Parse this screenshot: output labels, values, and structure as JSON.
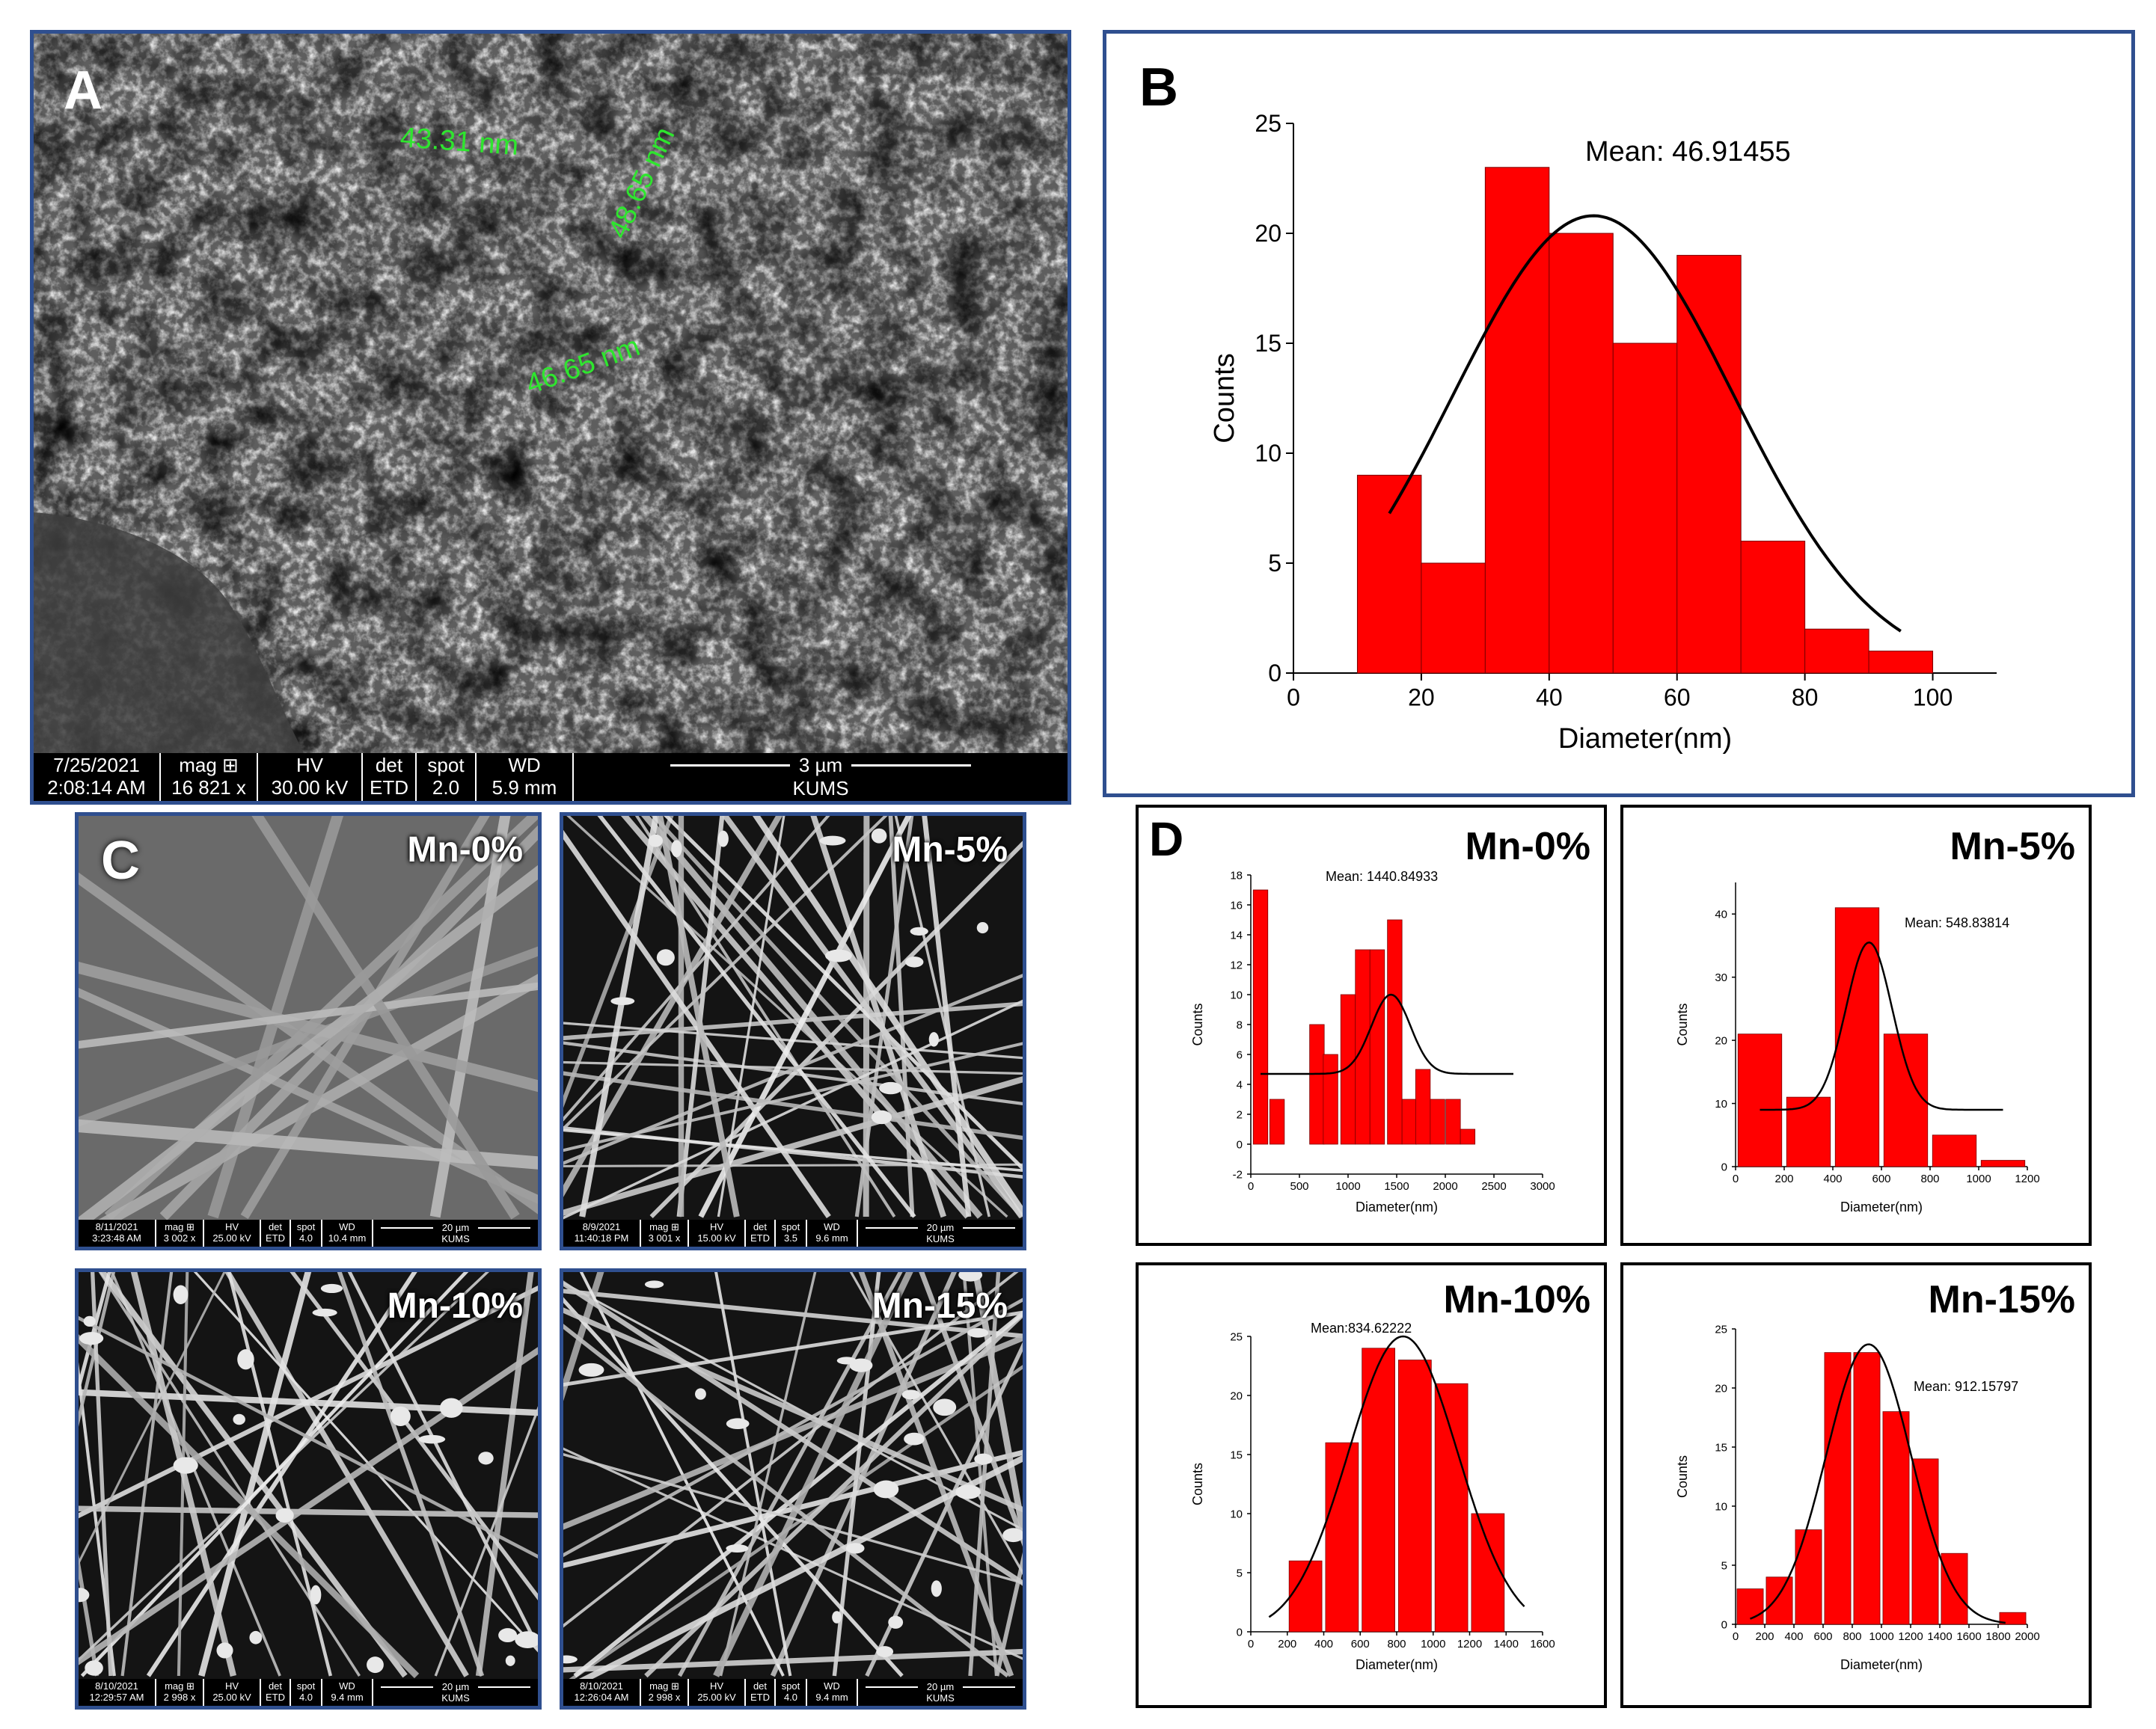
{
  "panel_a": {
    "letter": "A",
    "measurements": [
      "43.31 nm",
      "48.65 nm",
      "46.65 nm"
    ],
    "databar": {
      "date": "7/25/2021",
      "time": "2:08:14 AM",
      "mag_label": "mag ⊞",
      "mag_value": "16 821 x",
      "hv_label": "HV",
      "hv_value": "30.00 kV",
      "det_label": "det",
      "det_value": "ETD",
      "spot_label": "spot",
      "spot_value": "2.0",
      "wd_label": "WD",
      "wd_value": "5.9 mm",
      "scale": "3 µm",
      "org": "KUMS"
    }
  },
  "panel_c": {
    "letter": "C",
    "images": [
      {
        "tag": "Mn-0%",
        "date": "8/11/2021",
        "time": "3:23:48 AM",
        "mag_label": "mag ⊞",
        "mag_value": "3 002 x",
        "hv_label": "HV",
        "hv_value": "25.00 kV",
        "det_label": "det",
        "det_value": "ETD",
        "spot_label": "spot",
        "spot_value": "4.0",
        "wd_label": "WD",
        "wd_value": "10.4 mm",
        "scale": "20 µm",
        "org": "KUMS"
      },
      {
        "tag": "Mn-5%",
        "date": "8/9/2021",
        "time": "11:40:18 PM",
        "mag_label": "mag ⊞",
        "mag_value": "3 001 x",
        "hv_label": "HV",
        "hv_value": "15.00 kV",
        "det_label": "det",
        "det_value": "ETD",
        "spot_label": "spot",
        "spot_value": "3.5",
        "wd_label": "WD",
        "wd_value": "9.6 mm",
        "scale": "20 µm",
        "org": "KUMS"
      },
      {
        "tag": "Mn-10%",
        "date": "8/10/2021",
        "time": "12:29:57 AM",
        "mag_label": "mag ⊞",
        "mag_value": "2 998 x",
        "hv_label": "HV",
        "hv_value": "25.00 kV",
        "det_label": "det",
        "det_value": "ETD",
        "spot_label": "spot",
        "spot_value": "4.0",
        "wd_label": "WD",
        "wd_value": "9.4 mm",
        "scale": "20 µm",
        "org": "KUMS"
      },
      {
        "tag": "Mn-15%",
        "date": "8/10/2021",
        "time": "12:26:04 AM",
        "mag_label": "mag ⊞",
        "mag_value": "2 998 x",
        "hv_label": "HV",
        "hv_value": "25.00 kV",
        "det_label": "det",
        "det_value": "ETD",
        "spot_label": "spot",
        "spot_value": "4.0",
        "wd_label": "WD",
        "wd_value": "9.4 mm",
        "scale": "20 µm",
        "org": "KUMS"
      }
    ]
  },
  "panel_b_letter": "B",
  "panel_d_letter": "D",
  "colors": {
    "frame": "#2f4f8f",
    "bar": "#ff0000",
    "measure": "#2ee62e"
  },
  "chart_data": [
    {
      "id": "B",
      "type": "bar",
      "title": "",
      "annotation": "Mean: 46.91455",
      "xlabel": "Diameter(nm)",
      "ylabel": "Counts",
      "xlim": [
        0,
        110
      ],
      "ylim": [
        0,
        25
      ],
      "xticks": [
        0,
        20,
        40,
        60,
        80,
        100
      ],
      "yticks": [
        0,
        5,
        10,
        15,
        20,
        25
      ],
      "bin_width": 10,
      "x": [
        15,
        25,
        35,
        45,
        55,
        65,
        75,
        85,
        95
      ],
      "values": [
        9,
        5,
        23,
        20,
        15,
        19,
        6,
        2,
        1
      ],
      "fit": {
        "mean": 46.91455,
        "sd": 22,
        "peak": 20.8,
        "range": [
          15,
          95
        ]
      }
    },
    {
      "id": "D-Mn-0",
      "type": "bar",
      "title": "Mn-0%",
      "annotation": "Mean: 1440.84933",
      "xlabel": "Diameter(nm)",
      "ylabel": "Counts",
      "xlim": [
        0,
        3000
      ],
      "ylim": [
        -2,
        18
      ],
      "xticks": [
        0,
        500,
        1000,
        1500,
        2000,
        2500,
        3000
      ],
      "yticks": [
        -2,
        0,
        2,
        4,
        6,
        8,
        10,
        12,
        14,
        16,
        18
      ],
      "bin_width": 150,
      "x": [
        100,
        250,
        700,
        850,
        1000,
        1150,
        1300,
        1450,
        1600,
        1750,
        1900,
        2050,
        2200,
        2350,
        2500,
        2650
      ],
      "values": [
        17,
        3,
        0,
        8,
        6,
        10,
        13,
        13,
        15,
        3,
        5,
        3,
        3,
        1,
        0,
        0
      ],
      "bars": [
        {
          "x": 100,
          "v": 17
        },
        {
          "x": 270,
          "v": 3
        },
        {
          "x": 680,
          "v": 8
        },
        {
          "x": 820,
          "v": 6
        },
        {
          "x": 1000,
          "v": 10
        },
        {
          "x": 1150,
          "v": 13
        },
        {
          "x": 1300,
          "v": 13
        },
        {
          "x": 1480,
          "v": 15
        },
        {
          "x": 1630,
          "v": 3
        },
        {
          "x": 1770,
          "v": 5
        },
        {
          "x": 1920,
          "v": 3
        },
        {
          "x": 2080,
          "v": 3
        },
        {
          "x": 2230,
          "v": 1
        }
      ],
      "fit": {
        "mean": 1440.84933,
        "sd": 200,
        "peak": 10,
        "base": 4.7,
        "range": [
          100,
          2700
        ]
      }
    },
    {
      "id": "D-Mn-5",
      "type": "bar",
      "title": "Mn-5%",
      "annotation": "Mean: 548.83814",
      "xlabel": "Diameter(nm)",
      "ylabel": "Counts",
      "xlim": [
        0,
        1200
      ],
      "ylim": [
        0,
        45
      ],
      "xticks": [
        0,
        200,
        400,
        600,
        800,
        1000,
        1200
      ],
      "yticks": [
        0,
        10,
        20,
        30,
        40
      ],
      "bin_width": 180,
      "x": [
        100,
        300,
        500,
        700,
        900,
        1100
      ],
      "values": [
        21,
        11,
        41,
        21,
        5,
        1
      ],
      "fit": {
        "mean": 548.83814,
        "sd": 95,
        "peak": 35.5,
        "base": 9,
        "range": [
          100,
          1100
        ]
      }
    },
    {
      "id": "D-Mn-10",
      "type": "bar",
      "title": "Mn-10%",
      "annotation": "Mean:834.62222",
      "xlabel": "Diameter(nm)",
      "ylabel": "Counts",
      "xlim": [
        0,
        1600
      ],
      "ylim": [
        0,
        25
      ],
      "xticks": [
        0,
        200,
        400,
        600,
        800,
        1000,
        1200,
        1400,
        1600
      ],
      "yticks": [
        0,
        5,
        10,
        15,
        20,
        25
      ],
      "bin_width": 180,
      "x": [
        300,
        500,
        700,
        900,
        1100,
        1300
      ],
      "values": [
        6,
        16,
        24,
        23,
        21,
        10
      ],
      "fit": {
        "mean": 834.62222,
        "sd": 300,
        "peak": 25,
        "base": 0,
        "range": [
          100,
          1500
        ]
      }
    },
    {
      "id": "D-Mn-15",
      "type": "bar",
      "title": "Mn-15%",
      "annotation": "Mean: 912.15797",
      "xlabel": "Diameter(nm)",
      "ylabel": "Counts",
      "xlim": [
        0,
        2000
      ],
      "ylim": [
        0,
        25
      ],
      "xticks": [
        0,
        200,
        400,
        600,
        800,
        1000,
        1200,
        1400,
        1600,
        1800,
        2000
      ],
      "yticks": [
        0,
        5,
        10,
        15,
        20,
        25
      ],
      "bin_width": 180,
      "x": [
        100,
        300,
        500,
        700,
        900,
        1100,
        1300,
        1500,
        1900
      ],
      "values": [
        3,
        4,
        8,
        23,
        23,
        18,
        14,
        6,
        1
      ],
      "fit": {
        "mean": 912.15797,
        "sd": 290,
        "peak": 23.7,
        "base": 0,
        "range": [
          100,
          1850
        ]
      }
    }
  ]
}
